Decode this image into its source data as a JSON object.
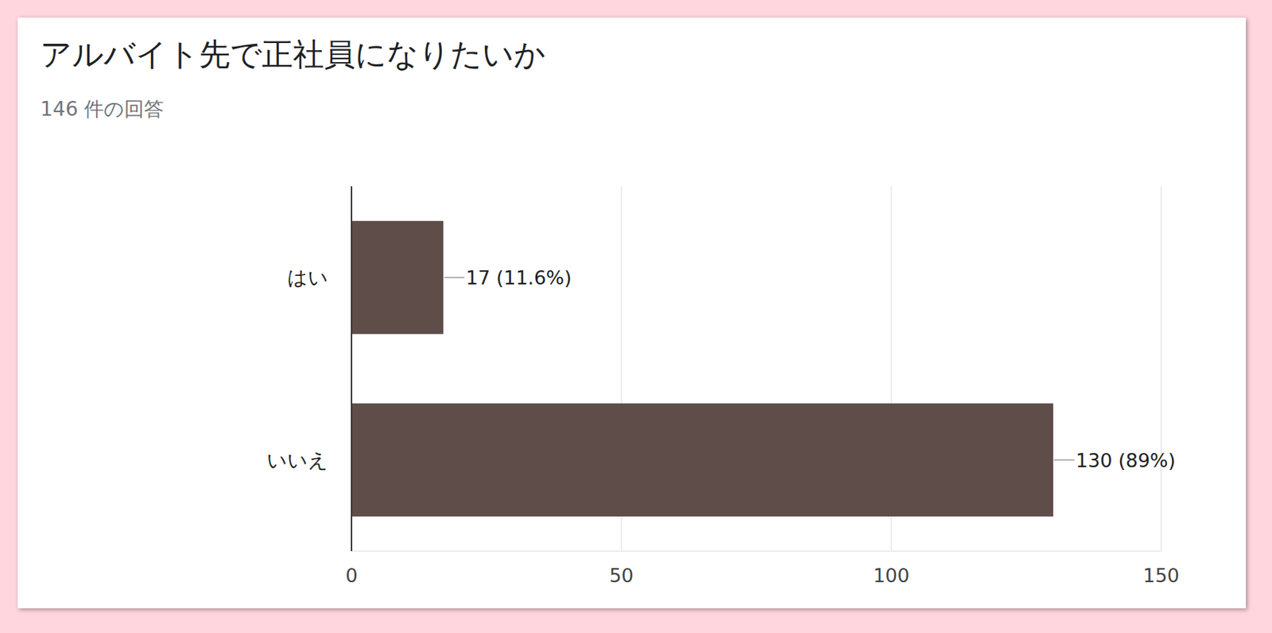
{
  "chart_data": {
    "type": "bar",
    "orientation": "horizontal",
    "title": "アルバイト先で正社員になりたいか",
    "subtitle": "146 件の回答",
    "categories": [
      "はい",
      "いいえ"
    ],
    "values": [
      17,
      130
    ],
    "value_labels": [
      "17 (11.6%)",
      "130 (89%)"
    ],
    "data_labels": true,
    "color": "#5f4d4a",
    "xlim": [
      0,
      150
    ],
    "xticks": [
      0,
      50,
      100,
      150
    ],
    "grid": true
  }
}
